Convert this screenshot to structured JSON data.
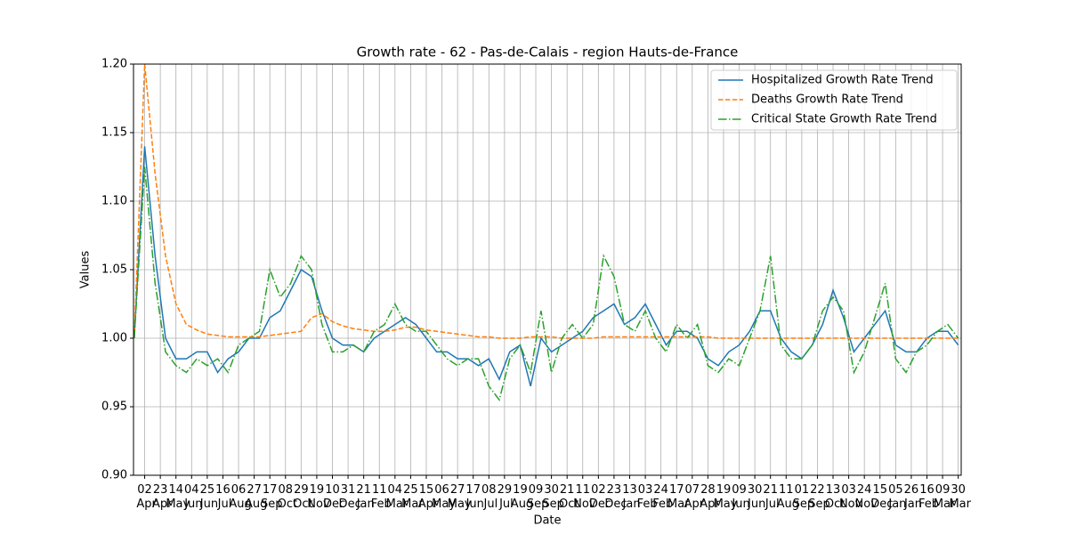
{
  "chart_data": {
    "type": "line",
    "title": "Growth rate - 62 - Pas-de-Calais - region Hauts-de-France",
    "xlabel": "Date",
    "ylabel": "Values",
    "xlim": [
      -15,
      1096
    ],
    "ylim": [
      0.9,
      1.2
    ],
    "yticks": [
      {
        "value": 0.9,
        "label": "0.90"
      },
      0.95,
      {
        "value": 1.0,
        "label": "1.00"
      },
      1.05,
      {
        "value": 1.1,
        "label": "1.10"
      },
      1.15,
      {
        "value": 1.2,
        "label": "1.20"
      }
    ],
    "xticks": [
      {
        "value": 0,
        "label": "02 Apr"
      },
      {
        "value": 21,
        "label": "23 Apr"
      },
      {
        "value": 42,
        "label": "14 May"
      },
      {
        "value": 63,
        "label": "04 Jun"
      },
      {
        "value": 84,
        "label": "25 Jun"
      },
      {
        "value": 105,
        "label": "16 Jul"
      },
      {
        "value": 126,
        "label": "06 Aug"
      },
      {
        "value": 147,
        "label": "27 Aug"
      },
      {
        "value": 168,
        "label": "17 Sep"
      },
      {
        "value": 189,
        "label": "08 Oct"
      },
      {
        "value": 210,
        "label": "29 Oct"
      },
      {
        "value": 231,
        "label": "19 Nov"
      },
      {
        "value": 252,
        "label": "10 Dec"
      },
      {
        "value": 273,
        "label": "31 Dec"
      },
      {
        "value": 294,
        "label": "21 Jan"
      },
      {
        "value": 315,
        "label": "11 Feb"
      },
      {
        "value": 336,
        "label": "04 Mar"
      },
      {
        "value": 357,
        "label": "25 Mar"
      },
      {
        "value": 378,
        "label": "15 Apr"
      },
      {
        "value": 399,
        "label": "06 May"
      },
      {
        "value": 420,
        "label": "27 May"
      },
      {
        "value": 441,
        "label": "17 Jun"
      },
      {
        "value": 462,
        "label": "08 Jul"
      },
      {
        "value": 483,
        "label": "29 Jul"
      },
      {
        "value": 504,
        "label": "19 Aug"
      },
      {
        "value": 525,
        "label": "09 Sep"
      },
      {
        "value": 546,
        "label": "30 Sep"
      },
      {
        "value": 567,
        "label": "21 Oct"
      },
      {
        "value": 588,
        "label": "11 Nov"
      },
      {
        "value": 609,
        "label": "02 Dec"
      },
      {
        "value": 630,
        "label": "23 Dec"
      },
      {
        "value": 651,
        "label": "13 Jan"
      },
      {
        "value": 672,
        "label": "03 Feb"
      },
      {
        "value": 693,
        "label": "24 Feb"
      },
      {
        "value": 714,
        "label": "17 Mar"
      },
      {
        "value": 735,
        "label": "07 Apr"
      },
      {
        "value": 756,
        "label": "28 Apr"
      },
      {
        "value": 777,
        "label": "19 May"
      },
      {
        "value": 798,
        "label": "09 Jun"
      },
      {
        "value": 819,
        "label": "30 Jun"
      },
      {
        "value": 840,
        "label": "21 Jul"
      },
      {
        "value": 861,
        "label": "11 Aug"
      },
      {
        "value": 882,
        "label": "01 Sep"
      },
      {
        "value": 903,
        "label": "22 Sep"
      },
      {
        "value": 924,
        "label": "13 Oct"
      },
      {
        "value": 945,
        "label": "03 Nov"
      },
      {
        "value": 966,
        "label": "24 Nov"
      },
      {
        "value": 987,
        "label": "15 Dec"
      },
      {
        "value": 1008,
        "label": "05 Jan"
      },
      {
        "value": 1029,
        "label": "26 Jan"
      },
      {
        "value": 1050,
        "label": "16 Feb"
      },
      {
        "value": 1071,
        "label": "09 Mar"
      },
      {
        "value": 1092,
        "label": "30 Mar"
      }
    ],
    "grid": true,
    "legend": "upper right",
    "x": [
      -14,
      0,
      14,
      28,
      42,
      56,
      70,
      84,
      98,
      112,
      126,
      140,
      154,
      168,
      182,
      196,
      210,
      224,
      238,
      252,
      266,
      280,
      294,
      308,
      322,
      336,
      350,
      364,
      378,
      392,
      406,
      420,
      434,
      448,
      462,
      476,
      490,
      504,
      518,
      532,
      546,
      560,
      574,
      588,
      602,
      616,
      630,
      644,
      658,
      672,
      686,
      700,
      714,
      728,
      742,
      756,
      770,
      784,
      798,
      812,
      826,
      840,
      854,
      868,
      882,
      896,
      910,
      924,
      938,
      952,
      966,
      980,
      994,
      1008,
      1022,
      1036,
      1050,
      1064,
      1078,
      1092
    ],
    "series": [
      {
        "name": "Hospitalized Growth Rate Trend",
        "color": "#1f77b4",
        "style": "solid",
        "values": [
          1.0,
          1.14,
          1.06,
          1.0,
          0.985,
          0.985,
          0.99,
          0.99,
          0.975,
          0.985,
          0.99,
          1.0,
          1.0,
          1.015,
          1.02,
          1.035,
          1.05,
          1.045,
          1.02,
          1.0,
          0.995,
          0.995,
          0.99,
          1.0,
          1.005,
          1.01,
          1.015,
          1.01,
          1.0,
          0.99,
          0.99,
          0.985,
          0.985,
          0.98,
          0.985,
          0.97,
          0.99,
          0.995,
          0.965,
          1.0,
          0.99,
          0.995,
          1.0,
          1.005,
          1.015,
          1.02,
          1.025,
          1.01,
          1.015,
          1.025,
          1.01,
          0.995,
          1.005,
          1.005,
          1.0,
          0.985,
          0.98,
          0.99,
          0.995,
          1.005,
          1.02,
          1.02,
          1.0,
          0.99,
          0.985,
          0.995,
          1.01,
          1.035,
          1.015,
          0.99,
          1.0,
          1.01,
          1.02,
          0.995,
          0.99,
          0.99,
          1.0,
          1.005,
          1.005,
          0.995
        ]
      },
      {
        "name": "Deaths Growth Rate Trend",
        "color": "#ff7f0e",
        "style": "dashed",
        "values": [
          1.0,
          1.2,
          1.12,
          1.06,
          1.025,
          1.01,
          1.006,
          1.003,
          1.002,
          1.001,
          1.001,
          1.001,
          1.001,
          1.002,
          1.003,
          1.004,
          1.005,
          1.015,
          1.018,
          1.012,
          1.009,
          1.007,
          1.006,
          1.005,
          1.005,
          1.006,
          1.008,
          1.008,
          1.006,
          1.005,
          1.004,
          1.003,
          1.002,
          1.001,
          1.001,
          1.0,
          1.0,
          1.0,
          1.001,
          1.001,
          1.001,
          1.0,
          1.0,
          1.0,
          1.0,
          1.001,
          1.001,
          1.001,
          1.001,
          1.001,
          1.001,
          1.001,
          1.001,
          1.001,
          1.001,
          1.001,
          1.0,
          1.0,
          1.0,
          1.0,
          1.0,
          1.0,
          1.0,
          1.0,
          1.0,
          1.0,
          1.0,
          1.0,
          1.0,
          1.0,
          1.0,
          1.0,
          1.0,
          1.0,
          1.0,
          1.0,
          1.0,
          1.0,
          1.0,
          1.0
        ]
      },
      {
        "name": "Critical State Growth Rate Trend",
        "color": "#2ca02c",
        "style": "dashdot",
        "values": [
          1.0,
          1.125,
          1.04,
          0.99,
          0.98,
          0.975,
          0.985,
          0.98,
          0.985,
          0.975,
          0.995,
          1.0,
          1.005,
          1.05,
          1.03,
          1.04,
          1.06,
          1.05,
          1.01,
          0.99,
          0.99,
          0.995,
          0.99,
          1.005,
          1.01,
          1.025,
          1.01,
          1.005,
          1.005,
          0.995,
          0.985,
          0.98,
          0.985,
          0.985,
          0.965,
          0.955,
          0.985,
          0.995,
          0.975,
          1.02,
          0.975,
          1.0,
          1.01,
          1.0,
          1.01,
          1.06,
          1.045,
          1.01,
          1.005,
          1.02,
          1.0,
          0.99,
          1.01,
          1.0,
          1.01,
          0.98,
          0.975,
          0.985,
          0.98,
          1.0,
          1.02,
          1.06,
          0.995,
          0.985,
          0.985,
          0.995,
          1.02,
          1.03,
          1.02,
          0.975,
          0.99,
          1.015,
          1.04,
          0.985,
          0.975,
          0.99,
          0.995,
          1.005,
          1.01,
          1.0
        ]
      }
    ]
  }
}
